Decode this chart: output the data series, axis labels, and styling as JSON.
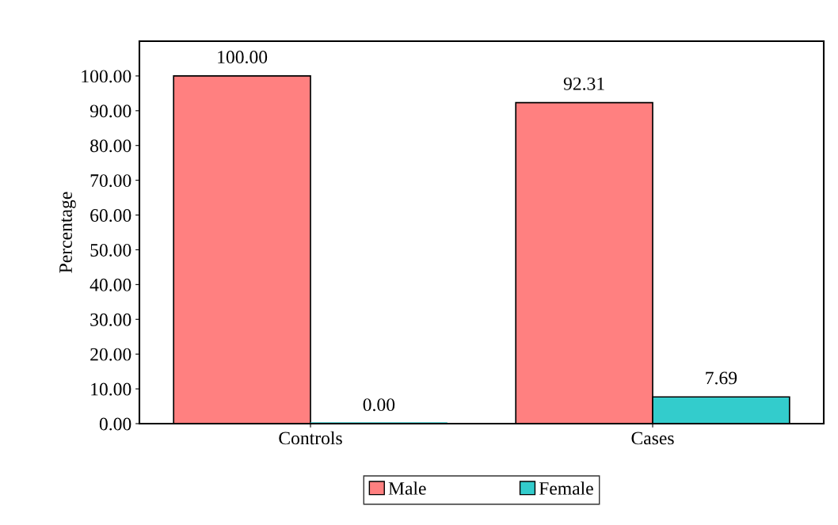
{
  "chart_data": {
    "type": "bar",
    "ylabel": "Percentage",
    "categories": [
      "Controls",
      "Cases"
    ],
    "series": [
      {
        "name": "Male",
        "color": "#ff8080",
        "values": [
          100.0,
          92.31
        ],
        "value_labels": [
          "100.00",
          "92.31"
        ]
      },
      {
        "name": "Female",
        "color": "#33cccc",
        "values": [
          0.0,
          7.69
        ],
        "value_labels": [
          "0.00",
          "7.69"
        ]
      }
    ],
    "ylim": [
      0,
      110
    ],
    "yticks": [
      {
        "value": 0,
        "label": "0.00"
      },
      {
        "value": 10,
        "label": "10.00"
      },
      {
        "value": 20,
        "label": "20.00"
      },
      {
        "value": 30,
        "label": "30.00"
      },
      {
        "value": 40,
        "label": "40.00"
      },
      {
        "value": 50,
        "label": "50.00"
      },
      {
        "value": 60,
        "label": "60.00"
      },
      {
        "value": 70,
        "label": "70.00"
      },
      {
        "value": 80,
        "label": "80.00"
      },
      {
        "value": 90,
        "label": "90.00"
      },
      {
        "value": 100,
        "label": "100.00"
      }
    ],
    "grid": false,
    "legend": "bottom"
  }
}
